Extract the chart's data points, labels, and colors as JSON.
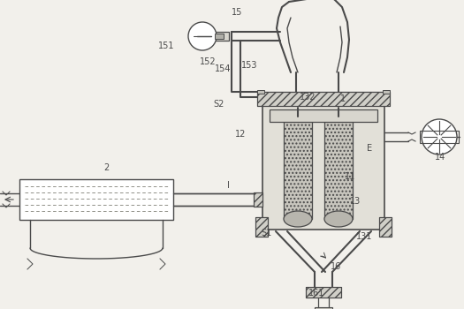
{
  "bg": "#f2f0eb",
  "lc": "#4a4a4a",
  "lw": 1.0,
  "lw2": 1.5,
  "labels": [
    [
      "15",
      268,
      14,
      7
    ],
    [
      "151",
      188,
      52,
      7
    ],
    [
      "152",
      235,
      70,
      7
    ],
    [
      "154",
      252,
      78,
      7
    ],
    [
      "153",
      282,
      74,
      7
    ],
    [
      "S2",
      248,
      118,
      7
    ],
    [
      "132",
      348,
      110,
      7
    ],
    [
      "1",
      388,
      112,
      7
    ],
    [
      "12",
      272,
      152,
      7
    ],
    [
      "E",
      418,
      168,
      7
    ],
    [
      "14",
      498,
      178,
      7
    ],
    [
      "11",
      396,
      200,
      7
    ],
    [
      "13",
      402,
      228,
      7
    ],
    [
      "2",
      120,
      190,
      7
    ],
    [
      "I",
      258,
      210,
      7
    ],
    [
      "S1",
      302,
      264,
      7
    ],
    [
      "131",
      412,
      268,
      7
    ],
    [
      "16",
      380,
      302,
      7
    ],
    [
      "161",
      358,
      332,
      7
    ]
  ]
}
